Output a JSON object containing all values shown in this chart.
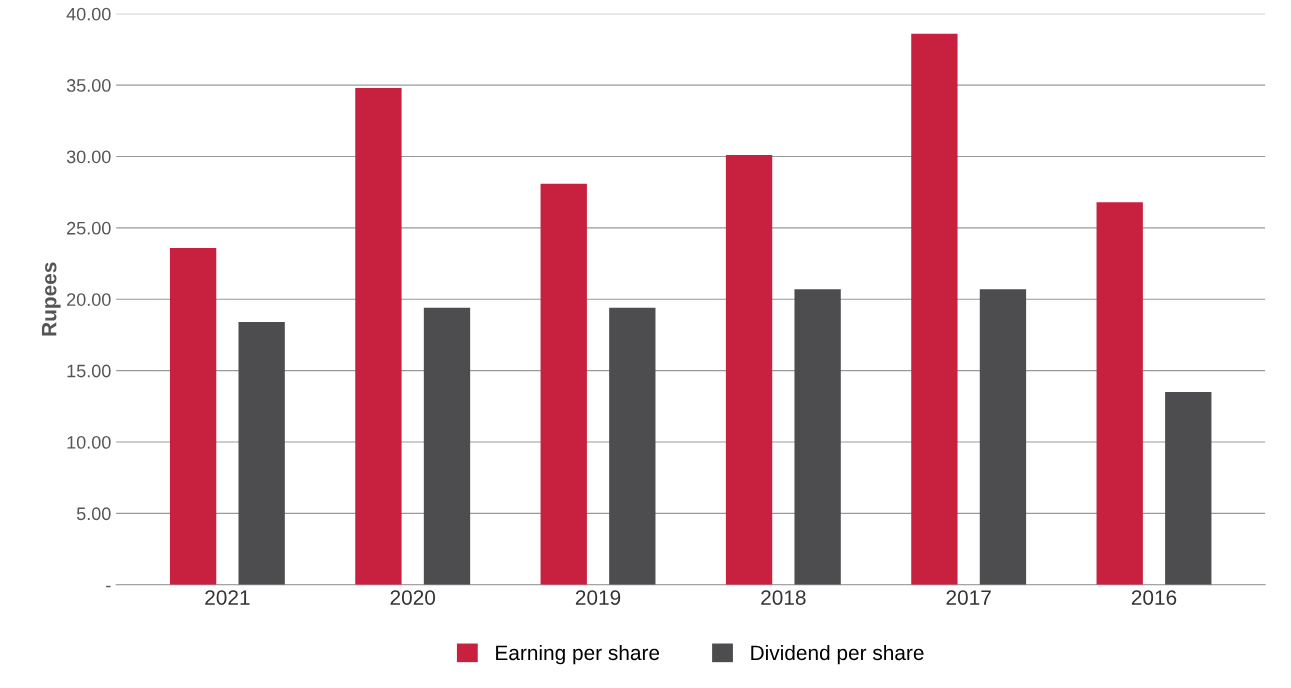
{
  "chart_data": {
    "type": "bar",
    "ylabel": "Rupees",
    "categories": [
      "2021",
      "2020",
      "2019",
      "2018",
      "2017",
      "2016"
    ],
    "series": [
      {
        "name": "Earning per share",
        "color": "#c8203f",
        "values": [
          23.6,
          34.8,
          28.1,
          30.1,
          38.6,
          26.8
        ]
      },
      {
        "name": "Dividend per share",
        "color": "#4d4d4f",
        "values": [
          18.4,
          19.4,
          19.4,
          20.7,
          20.7,
          13.5
        ]
      }
    ],
    "ylim": [
      0,
      40
    ],
    "yticks": [
      {
        "value": 0,
        "label": "-"
      },
      {
        "value": 5,
        "label": "5.00"
      },
      {
        "value": 10,
        "label": "10.00"
      },
      {
        "value": 15,
        "label": "15.00"
      },
      {
        "value": 20,
        "label": "20.00"
      },
      {
        "value": 25,
        "label": "25.00"
      },
      {
        "value": 30,
        "label": "30.00"
      },
      {
        "value": 35,
        "label": "35.00"
      },
      {
        "value": 40,
        "label": "40.00"
      }
    ],
    "grid": "y",
    "legend": "bottom"
  }
}
